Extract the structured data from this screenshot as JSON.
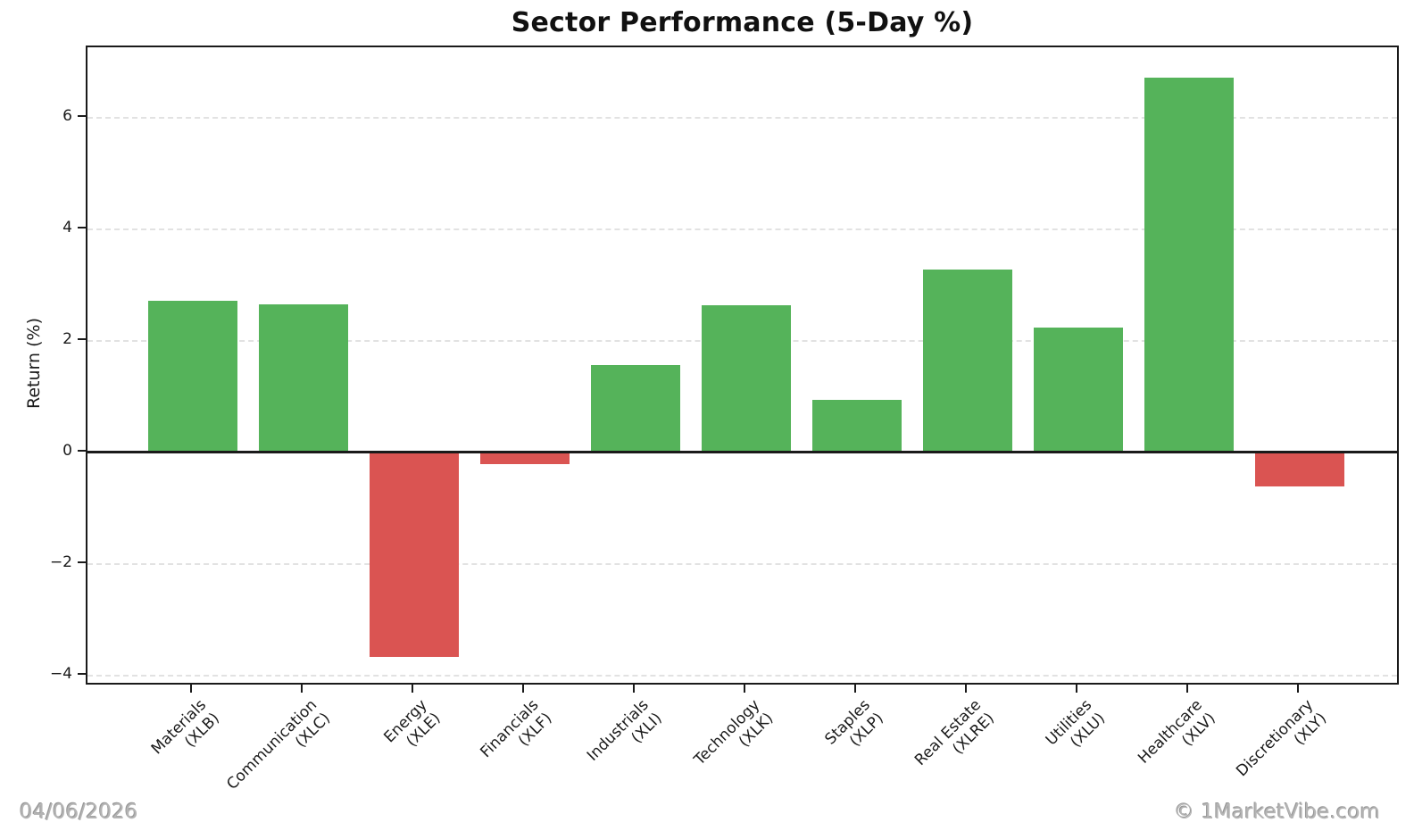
{
  "footer": {
    "date": "04/06/2026",
    "watermark": "© 1MarketVibe.com"
  },
  "colors": {
    "positive": "#55b35a",
    "negative": "#da5452",
    "gridline": "#e2e2e2",
    "axis": "#1a1a1a",
    "footer_text": "#b5b5b5"
  },
  "chart_data": {
    "type": "bar",
    "title": "Sector Performance (5-Day %)",
    "xlabel": "",
    "ylabel": "Return (%)",
    "categories": [
      {
        "sector": "Materials",
        "ticker": "(XLB)"
      },
      {
        "sector": "Communication",
        "ticker": "(XLC)"
      },
      {
        "sector": "Energy",
        "ticker": "(XLE)"
      },
      {
        "sector": "Financials",
        "ticker": "(XLF)"
      },
      {
        "sector": "Industrials",
        "ticker": "(XLI)"
      },
      {
        "sector": "Technology",
        "ticker": "(XLK)"
      },
      {
        "sector": "Staples",
        "ticker": "(XLP)"
      },
      {
        "sector": "Real Estate",
        "ticker": "(XLRE)"
      },
      {
        "sector": "Utilities",
        "ticker": "(XLU)"
      },
      {
        "sector": "Healthcare",
        "ticker": "(XLV)"
      },
      {
        "sector": "Discretionary",
        "ticker": "(XLY)"
      }
    ],
    "values": [
      2.71,
      2.65,
      -3.67,
      -0.22,
      1.56,
      2.63,
      0.93,
      3.27,
      2.23,
      6.72,
      -0.61
    ],
    "bar_color_rule": "positive green, negative red",
    "yticks": [
      6,
      4,
      2,
      0,
      -2,
      -4
    ],
    "ylim": [
      -4.2,
      7.26
    ],
    "grid": "horizontal dashed",
    "legend": "none"
  }
}
